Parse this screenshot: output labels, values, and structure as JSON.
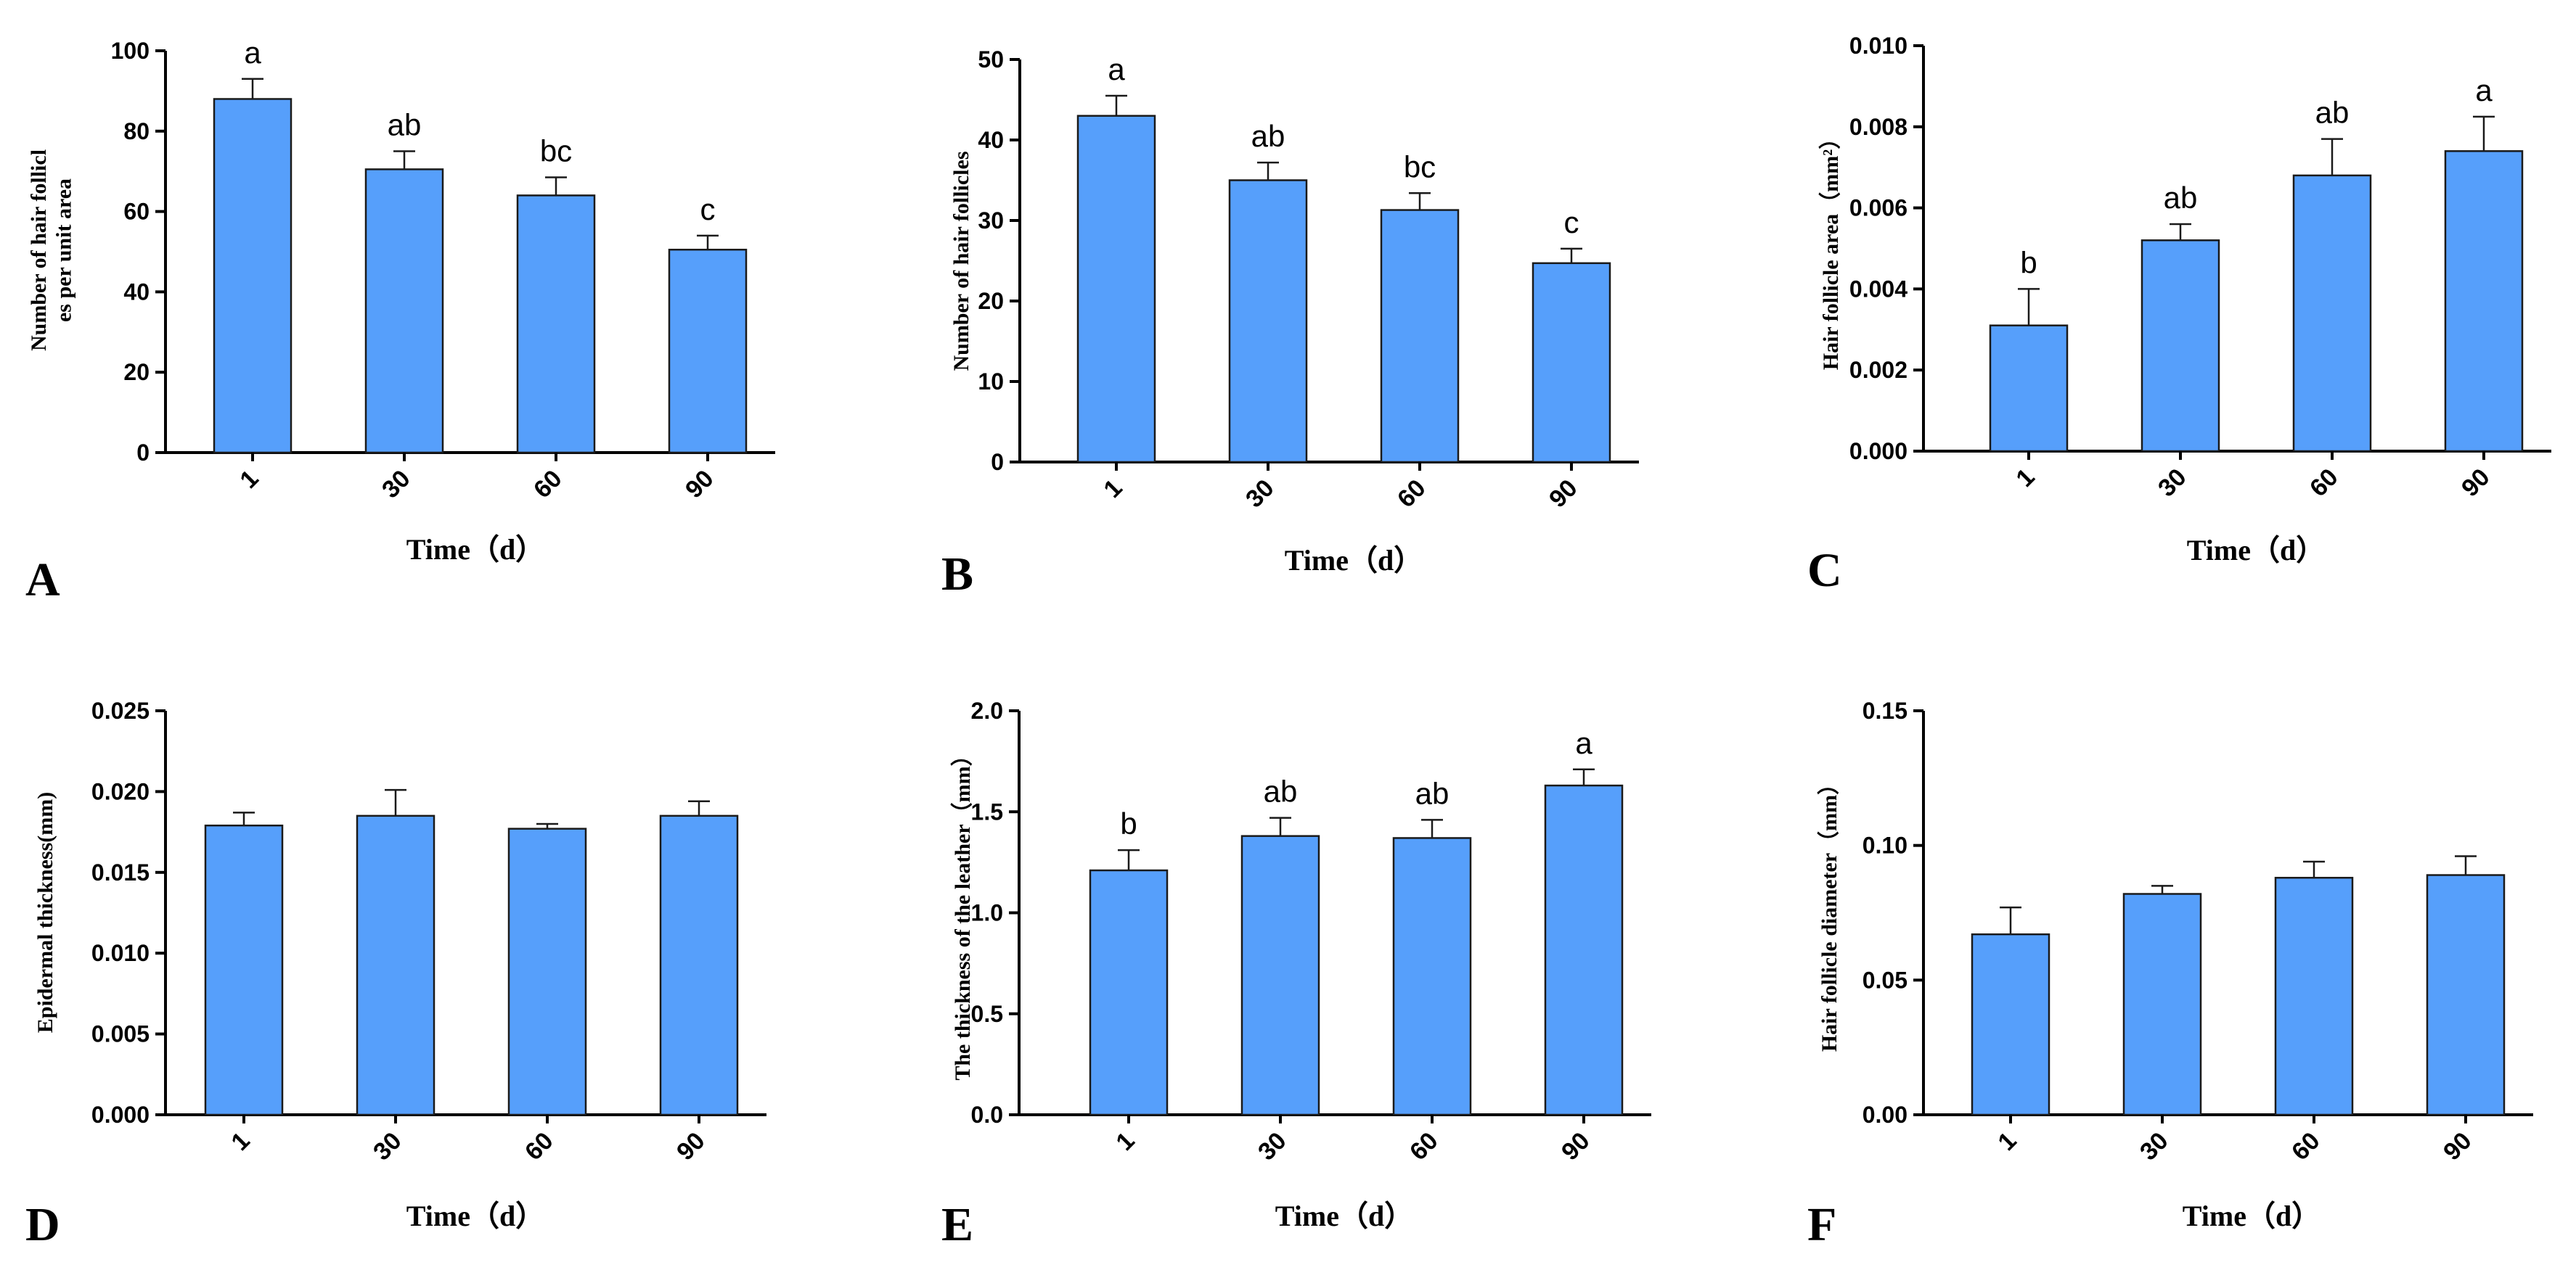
{
  "figure": {
    "colors": {
      "bar": "#569ffb",
      "stroke": "#1a1a1a"
    }
  },
  "chart_data": [
    {
      "panel": "A",
      "type": "bar",
      "categories": [
        "1",
        "30",
        "60",
        "90"
      ],
      "values": [
        88,
        70.5,
        64,
        50.5
      ],
      "errors": [
        5,
        4.5,
        4.5,
        3.5
      ],
      "labels": [
        "a",
        "ab",
        "bc",
        "c"
      ],
      "ylabel_lines": [
        "Number of hair follicl",
        "es per unit area"
      ],
      "xlabel": "Time（d）",
      "ylim": [
        0,
        100
      ],
      "yticks": [
        "0",
        "20",
        "40",
        "60",
        "80",
        "100"
      ]
    },
    {
      "panel": "B",
      "type": "bar",
      "categories": [
        "1",
        "30",
        "60",
        "90"
      ],
      "values": [
        43,
        35,
        31.3,
        24.7
      ],
      "errors": [
        2.5,
        2.2,
        2.1,
        1.8
      ],
      "labels": [
        "a",
        "ab",
        "bc",
        "c"
      ],
      "ylabel_lines": [
        "Number of hair follicles"
      ],
      "xlabel": "Time（d）",
      "ylim": [
        0,
        50
      ],
      "yticks": [
        "0",
        "10",
        "20",
        "30",
        "40",
        "50"
      ]
    },
    {
      "panel": "C",
      "type": "bar",
      "categories": [
        "1",
        "30",
        "60",
        "90"
      ],
      "values": [
        0.0031,
        0.0052,
        0.0068,
        0.0074
      ],
      "errors": [
        0.0009,
        0.0004,
        0.0009,
        0.00085
      ],
      "labels": [
        "b",
        "ab",
        "ab",
        "a"
      ],
      "ylabel_lines": [
        "Hair follicle area（mm²）"
      ],
      "xlabel": "Time（d）",
      "ylim": [
        0,
        0.01
      ],
      "yticks": [
        "0.000",
        "0.002",
        "0.004",
        "0.006",
        "0.008",
        "0.010"
      ]
    },
    {
      "panel": "D",
      "type": "bar",
      "categories": [
        "1",
        "30",
        "60",
        "90"
      ],
      "values": [
        0.0179,
        0.0185,
        0.0177,
        0.0185
      ],
      "errors": [
        0.0008,
        0.0016,
        0.0003,
        0.0009
      ],
      "labels": [
        "",
        "",
        "",
        ""
      ],
      "ylabel_lines": [
        "Epidermal thickness(mm)"
      ],
      "xlabel": "Time（d）",
      "ylim": [
        0,
        0.025
      ],
      "yticks": [
        "0.000",
        "0.005",
        "0.010",
        "0.015",
        "0.020",
        "0.025"
      ]
    },
    {
      "panel": "E",
      "type": "bar",
      "categories": [
        "1",
        "30",
        "60",
        "90"
      ],
      "values": [
        1.21,
        1.38,
        1.37,
        1.63
      ],
      "errors": [
        0.1,
        0.09,
        0.09,
        0.08
      ],
      "labels": [
        "b",
        "ab",
        "ab",
        "a"
      ],
      "ylabel_lines": [
        "The thickness of the leather（mm）"
      ],
      "xlabel": "Time（d）",
      "ylim": [
        0,
        2.0
      ],
      "yticks": [
        "0.0",
        "0.5",
        "1.0",
        "1.5",
        "2.0"
      ]
    },
    {
      "panel": "F",
      "type": "bar",
      "categories": [
        "1",
        "30",
        "60",
        "90"
      ],
      "values": [
        0.067,
        0.082,
        0.088,
        0.089
      ],
      "errors": [
        0.01,
        0.003,
        0.006,
        0.007
      ],
      "labels": [
        "",
        "",
        "",
        ""
      ],
      "ylabel_lines": [
        "Hair follicle diameter（mm）"
      ],
      "xlabel": "Time（d）",
      "ylim": [
        0,
        0.15
      ],
      "yticks": [
        "0.00",
        "0.05",
        "0.10",
        "0.15"
      ]
    }
  ]
}
